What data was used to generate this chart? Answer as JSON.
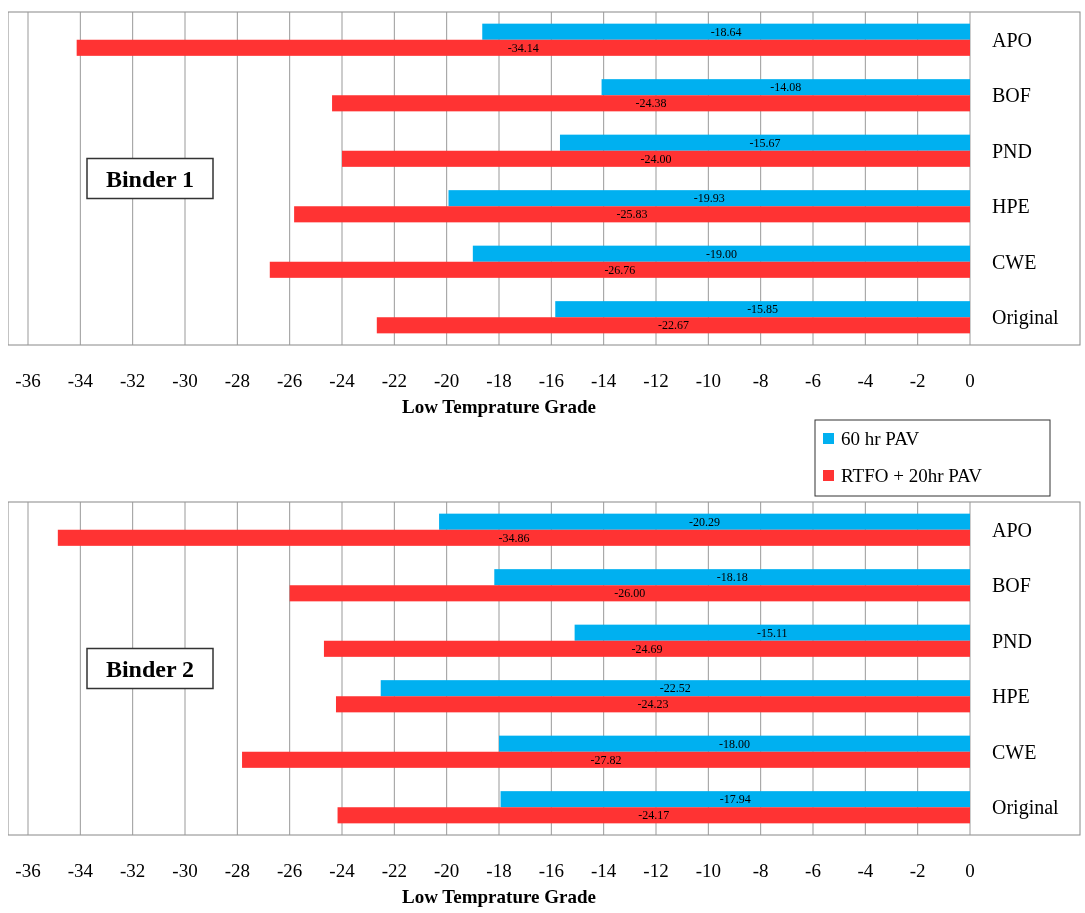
{
  "chart_data": [
    {
      "type": "bar",
      "orientation": "horizontal",
      "categories": [
        "APO",
        "BOF",
        "PND",
        "HPE",
        "CWE",
        "Original"
      ],
      "xlabel": "Low Temprature Grade",
      "xlim": [
        -36,
        0
      ],
      "xticks": [
        -36,
        -34,
        -32,
        -30,
        -28,
        -26,
        -24,
        -22,
        -20,
        -18,
        -16,
        -14,
        -12,
        -10,
        -8,
        -6,
        -4,
        -2,
        0
      ],
      "grid": "x",
      "annotations": [
        "Binder 1"
      ],
      "series": [
        {
          "color": "#00b0f0",
          "values": [
            -18.64,
            -14.08,
            -15.67,
            -19.93,
            -19.0,
            -15.85
          ],
          "value_labels": [
            "-18.64",
            "-14.08",
            "-15.67",
            "-19.93",
            "-19.00",
            "-15.85"
          ]
        },
        {
          "color": "#ff3333",
          "values": [
            -34.14,
            -24.38,
            -24.0,
            -25.83,
            -26.76,
            -22.67
          ],
          "value_labels": [
            "-34.14",
            "-24.38",
            "-24.00",
            "-25.83",
            "-26.76",
            "-22.67"
          ]
        }
      ]
    },
    {
      "type": "bar",
      "orientation": "horizontal",
      "categories": [
        "APO",
        "BOF",
        "PND",
        "HPE",
        "CWE",
        "Original"
      ],
      "xlabel": "Low Temprature Grade",
      "xlim": [
        -36,
        0
      ],
      "xticks": [
        -36,
        -34,
        -32,
        -30,
        -28,
        -26,
        -24,
        -22,
        -20,
        -18,
        -16,
        -14,
        -12,
        -10,
        -8,
        -6,
        -4,
        -2,
        0
      ],
      "grid": "x",
      "annotations": [
        "Binder 2"
      ],
      "legend": "top right",
      "series": [
        {
          "name": "60 hr PAV",
          "color": "#00b0f0",
          "values": [
            -20.29,
            -18.18,
            -15.11,
            -22.52,
            -18.0,
            -17.94
          ],
          "value_labels": [
            "-20.29",
            "-18.18",
            "-15.11",
            "-22.52",
            "-18.00",
            "-17.94"
          ]
        },
        {
          "name": "RTFO + 20hr PAV",
          "color": "#ff3333",
          "values": [
            -34.86,
            -26.0,
            -24.69,
            -24.23,
            -27.82,
            -24.17
          ],
          "value_labels": [
            "-34.86",
            "-26.00",
            "-24.69",
            "-24.23",
            "-27.82",
            "-24.17"
          ]
        }
      ]
    }
  ]
}
